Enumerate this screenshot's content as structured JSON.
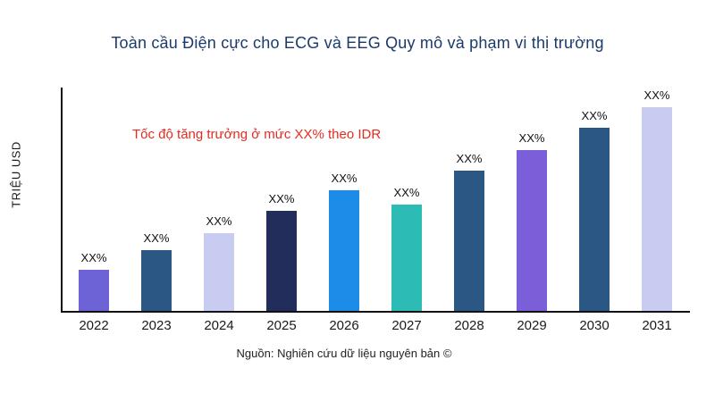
{
  "chart_data": {
    "type": "bar",
    "title": "Toàn cầu Điện cực cho ECG và EEG Quy mô và phạm vi thị trường",
    "title_color": "#1b3a6b",
    "ylabel": "TRIỆU USD",
    "categories": [
      "2022",
      "2023",
      "2024",
      "2025",
      "2026",
      "2027",
      "2028",
      "2029",
      "2030",
      "2031"
    ],
    "values": [
      20,
      30,
      38,
      49,
      59,
      52,
      69,
      79,
      90,
      100
    ],
    "bar_labels": [
      "XX%",
      "XX%",
      "XX%",
      "XX%",
      "XX%",
      "XX%",
      "XX%",
      "XX%",
      "XX%",
      "XX%"
    ],
    "colors": [
      "#6e63d6",
      "#2a5783",
      "#c8ccf0",
      "#232d5c",
      "#1d8ce8",
      "#2cbbb5",
      "#2a5783",
      "#7a5fd8",
      "#2a5783",
      "#c8ccf0"
    ],
    "annotation": "Tốc độ tăng trưởng ở mức XX% theo IDR",
    "annotation_color": "#e8291f",
    "source": "Nguồn: Nghiên cứu dữ liệu nguyên bản ©",
    "ylim": [
      0,
      100
    ],
    "grid": false,
    "legend": false
  }
}
